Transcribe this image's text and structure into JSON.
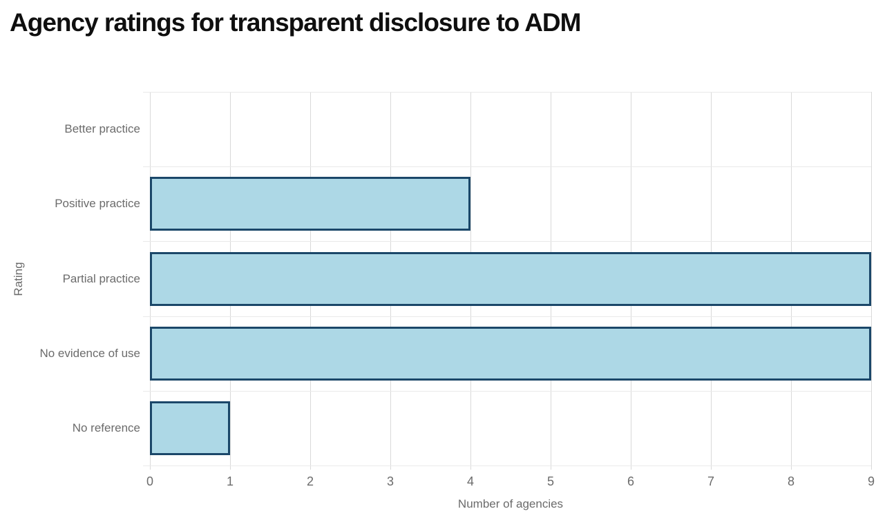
{
  "page": {
    "background": "#ffffff"
  },
  "chart_data": {
    "type": "bar",
    "orientation": "horizontal",
    "title": "Agency ratings for transparent disclosure to ADM",
    "categories": [
      "Better practice",
      "Positive practice",
      "Partial practice",
      "No evidence of use",
      "No reference"
    ],
    "values": [
      0,
      4,
      9,
      9,
      1
    ],
    "xlabel": "Number of agencies",
    "ylabel": "Rating",
    "xlim": [
      0,
      9
    ],
    "xticks": [
      0,
      1,
      2,
      3,
      4,
      5,
      6,
      7,
      8,
      9
    ],
    "grid": true,
    "legend": false,
    "colors": {
      "bar_fill": "#add8e6",
      "bar_border": "#1b4769",
      "gridline": "#d9d9d9",
      "band_line": "#e9e9e9",
      "axis_text": "#6b6b6b",
      "title_text": "#0f0f0f"
    }
  }
}
